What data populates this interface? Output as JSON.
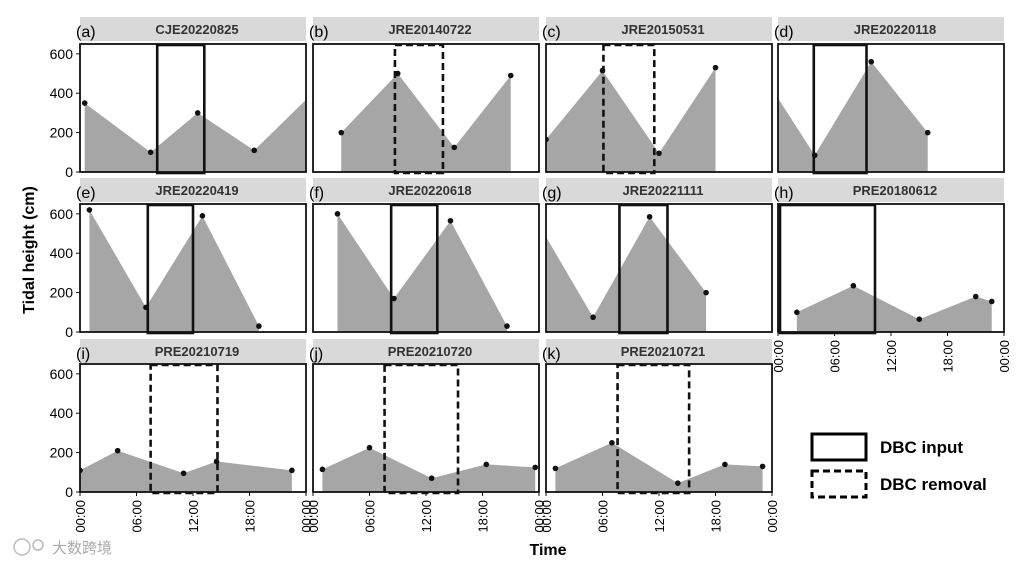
{
  "chart_data": {
    "type": "area",
    "ylabel": "Tidal height (cm)",
    "xlabel": "Time",
    "ylim": [
      0,
      650
    ],
    "xlim_hours": [
      0,
      24
    ],
    "y_ticks": [
      0,
      200,
      400,
      600
    ],
    "x_ticks": [
      "00:00",
      "06:00",
      "12:00",
      "18:00",
      "00:00"
    ],
    "legend": [
      {
        "label": "DBC input",
        "style": "solid"
      },
      {
        "label": "DBC removal",
        "style": "dashed"
      }
    ],
    "panels": [
      {
        "letter": "(a)",
        "title": "CJE20220825",
        "box_style": "solid",
        "box_hours": [
          8.2,
          13.2
        ],
        "points": [
          [
            0.5,
            350
          ],
          [
            7.5,
            100
          ],
          [
            12.5,
            300
          ],
          [
            18.5,
            110
          ],
          [
            24.5,
            390
          ]
        ]
      },
      {
        "letter": "(b)",
        "title": "JRE20140722",
        "box_style": "dashed",
        "box_hours": [
          8.7,
          13.8
        ],
        "points": [
          [
            3,
            200
          ],
          [
            9,
            500
          ],
          [
            15,
            125
          ],
          [
            21,
            490
          ]
        ]
      },
      {
        "letter": "(c)",
        "title": "JRE20150531",
        "box_style": "dashed",
        "box_hours": [
          6.1,
          11.5
        ],
        "points": [
          [
            0,
            165
          ],
          [
            6,
            515
          ],
          [
            12,
            95
          ],
          [
            18,
            530
          ]
        ]
      },
      {
        "letter": "(d)",
        "title": "JRE20220118",
        "box_style": "solid",
        "box_hours": [
          3.8,
          9.4
        ],
        "points": [
          [
            -2.1,
            530
          ],
          [
            3.9,
            85
          ],
          [
            9.9,
            560
          ],
          [
            15.9,
            200
          ]
        ]
      },
      {
        "letter": "(e)",
        "title": "JRE20220419",
        "box_style": "solid",
        "box_hours": [
          7.2,
          12.0
        ],
        "points": [
          [
            1,
            620
          ],
          [
            7,
            125
          ],
          [
            13,
            590
          ],
          [
            19,
            30
          ]
        ]
      },
      {
        "letter": "(f)",
        "title": "JRE20220618",
        "box_style": "solid",
        "box_hours": [
          8.3,
          13.2
        ],
        "points": [
          [
            2.6,
            600
          ],
          [
            8.6,
            170
          ],
          [
            14.6,
            565
          ],
          [
            20.6,
            30
          ]
        ]
      },
      {
        "letter": "(g)",
        "title": "JRE20221111",
        "box_style": "solid",
        "box_hours": [
          7.8,
          12.9
        ],
        "points": [
          [
            -1,
            565
          ],
          [
            5,
            75
          ],
          [
            11,
            585
          ],
          [
            17,
            200
          ]
        ]
      },
      {
        "letter": "(h)",
        "title": "PRE20180612",
        "box_style": "solid",
        "box_hours": [
          0,
          10.3
        ],
        "points": [
          [
            2,
            100
          ],
          [
            8,
            235
          ],
          [
            15,
            65
          ],
          [
            21,
            180
          ],
          [
            22.7,
            155
          ]
        ]
      },
      {
        "letter": "(i)",
        "title": "PRE20210719",
        "box_style": "dashed",
        "box_hours": [
          7.5,
          14.6
        ],
        "points": [
          [
            0,
            110
          ],
          [
            4,
            210
          ],
          [
            11,
            95
          ],
          [
            14.5,
            155
          ],
          [
            22.5,
            110
          ]
        ]
      },
      {
        "letter": "(j)",
        "title": "PRE20210720",
        "box_style": "dashed",
        "box_hours": [
          7.6,
          15.4
        ],
        "points": [
          [
            1,
            115
          ],
          [
            6,
            225
          ],
          [
            12.6,
            70
          ],
          [
            18.4,
            140
          ],
          [
            23.6,
            125
          ]
        ]
      },
      {
        "letter": "(k)",
        "title": "PRE20210721",
        "box_style": "dashed",
        "box_hours": [
          7.6,
          15.2
        ],
        "points": [
          [
            1,
            120
          ],
          [
            7,
            250
          ],
          [
            14,
            45
          ],
          [
            19,
            140
          ],
          [
            23,
            130
          ]
        ]
      }
    ]
  },
  "watermark": "大数跨境"
}
